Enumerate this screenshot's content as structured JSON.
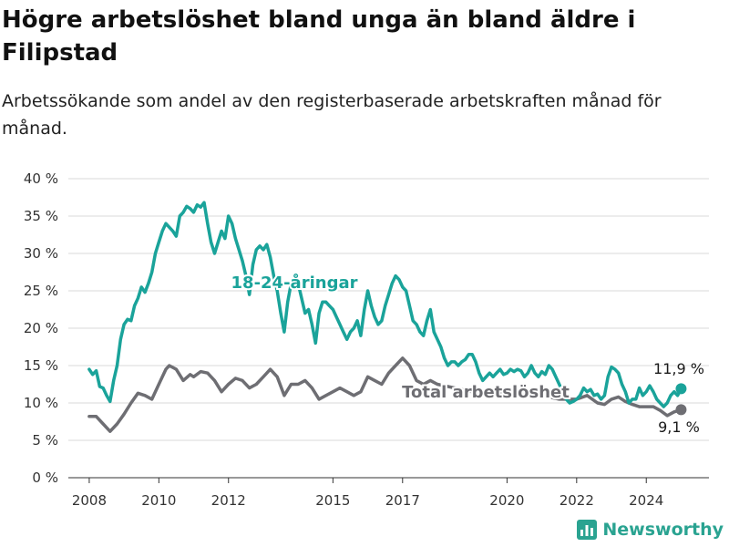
{
  "header": {
    "title": "Högre arbetslöshet bland unga än bland äldre i Filipstad",
    "subtitle": "Arbetssökande som andel av den registerbaserade arbetskraften månad för månad."
  },
  "brand": {
    "name": "Newsworthy",
    "icon": "bar-chart-logo-icon"
  },
  "colors": {
    "youth": "#1aa39a",
    "total": "#6e6e73",
    "grid": "#d9d9d9",
    "axis": "#333333"
  },
  "chart_data": {
    "type": "line",
    "title": "Högre arbetslöshet bland unga än bland äldre i Filipstad",
    "xlabel": "",
    "ylabel": "",
    "xlim": [
      2007.4,
      2025.8
    ],
    "ylim": [
      0,
      40
    ],
    "grid": true,
    "legend": "inline labels",
    "x_ticks": [
      2008,
      2010,
      2012,
      2015,
      2017,
      2020,
      2022,
      2024
    ],
    "x_tick_labels": [
      "2008",
      "2010",
      "2012",
      "2015",
      "2017",
      "2020",
      "2022",
      "2024"
    ],
    "y_ticks": [
      0,
      5,
      10,
      15,
      20,
      25,
      30,
      35,
      40
    ],
    "y_tick_labels": [
      "0 %",
      "5 %",
      "10 %",
      "15 %",
      "20 %",
      "25 %",
      "30 %",
      "35 %",
      "40 %"
    ],
    "series": [
      {
        "name": "18-24-åringar",
        "end_label": "11,9 %",
        "points": [
          [
            2008.0,
            14.5
          ],
          [
            2008.1,
            13.8
          ],
          [
            2008.2,
            14.3
          ],
          [
            2008.3,
            12.2
          ],
          [
            2008.4,
            12.0
          ],
          [
            2008.5,
            11.0
          ],
          [
            2008.6,
            10.2
          ],
          [
            2008.7,
            13.0
          ],
          [
            2008.8,
            15.0
          ],
          [
            2008.9,
            18.5
          ],
          [
            2009.0,
            20.5
          ],
          [
            2009.1,
            21.2
          ],
          [
            2009.2,
            21.0
          ],
          [
            2009.3,
            23.0
          ],
          [
            2009.4,
            24.0
          ],
          [
            2009.5,
            25.5
          ],
          [
            2009.6,
            24.8
          ],
          [
            2009.7,
            26.0
          ],
          [
            2009.8,
            27.5
          ],
          [
            2009.9,
            30.0
          ],
          [
            2010.0,
            31.5
          ],
          [
            2010.1,
            33.0
          ],
          [
            2010.2,
            34.0
          ],
          [
            2010.3,
            33.5
          ],
          [
            2010.4,
            33.0
          ],
          [
            2010.5,
            32.3
          ],
          [
            2010.6,
            35.0
          ],
          [
            2010.7,
            35.5
          ],
          [
            2010.8,
            36.3
          ],
          [
            2010.9,
            36.0
          ],
          [
            2011.0,
            35.5
          ],
          [
            2011.1,
            36.5
          ],
          [
            2011.2,
            36.2
          ],
          [
            2011.3,
            36.8
          ],
          [
            2011.4,
            34.0
          ],
          [
            2011.5,
            31.5
          ],
          [
            2011.6,
            30.0
          ],
          [
            2011.7,
            31.5
          ],
          [
            2011.8,
            33.0
          ],
          [
            2011.9,
            32.0
          ],
          [
            2012.0,
            35.0
          ],
          [
            2012.1,
            34.0
          ],
          [
            2012.2,
            32.0
          ],
          [
            2012.3,
            30.5
          ],
          [
            2012.4,
            29.0
          ],
          [
            2012.5,
            27.0
          ],
          [
            2012.6,
            24.5
          ],
          [
            2012.7,
            28.5
          ],
          [
            2012.8,
            30.5
          ],
          [
            2012.9,
            31.0
          ],
          [
            2013.0,
            30.5
          ],
          [
            2013.1,
            31.2
          ],
          [
            2013.2,
            29.5
          ],
          [
            2013.3,
            27.0
          ],
          [
            2013.4,
            25.0
          ],
          [
            2013.5,
            22.0
          ],
          [
            2013.6,
            19.5
          ],
          [
            2013.7,
            23.5
          ],
          [
            2013.8,
            26.0
          ],
          [
            2013.9,
            27.0
          ],
          [
            2014.0,
            26.0
          ],
          [
            2014.1,
            24.0
          ],
          [
            2014.2,
            22.0
          ],
          [
            2014.3,
            22.5
          ],
          [
            2014.4,
            20.5
          ],
          [
            2014.5,
            18.0
          ],
          [
            2014.6,
            22.0
          ],
          [
            2014.7,
            23.5
          ],
          [
            2014.8,
            23.5
          ],
          [
            2014.9,
            23.0
          ],
          [
            2015.0,
            22.5
          ],
          [
            2015.1,
            21.5
          ],
          [
            2015.2,
            20.5
          ],
          [
            2015.3,
            19.5
          ],
          [
            2015.4,
            18.5
          ],
          [
            2015.5,
            19.5
          ],
          [
            2015.6,
            20.0
          ],
          [
            2015.7,
            21.0
          ],
          [
            2015.8,
            19.0
          ],
          [
            2015.9,
            22.5
          ],
          [
            2016.0,
            25.0
          ],
          [
            2016.1,
            23.0
          ],
          [
            2016.2,
            21.5
          ],
          [
            2016.3,
            20.5
          ],
          [
            2016.4,
            21.0
          ],
          [
            2016.5,
            23.0
          ],
          [
            2016.6,
            24.5
          ],
          [
            2016.7,
            26.0
          ],
          [
            2016.8,
            27.0
          ],
          [
            2016.9,
            26.5
          ],
          [
            2017.0,
            25.5
          ],
          [
            2017.1,
            25.0
          ],
          [
            2017.2,
            23.0
          ],
          [
            2017.3,
            21.0
          ],
          [
            2017.4,
            20.5
          ],
          [
            2017.5,
            19.5
          ],
          [
            2017.6,
            19.0
          ],
          [
            2017.7,
            21.0
          ],
          [
            2017.8,
            22.5
          ],
          [
            2017.9,
            19.5
          ],
          [
            2018.0,
            18.5
          ],
          [
            2018.1,
            17.5
          ],
          [
            2018.2,
            16.0
          ],
          [
            2018.3,
            15.0
          ],
          [
            2018.4,
            15.5
          ],
          [
            2018.5,
            15.5
          ],
          [
            2018.6,
            15.0
          ],
          [
            2018.7,
            15.5
          ],
          [
            2018.8,
            15.8
          ],
          [
            2018.9,
            16.5
          ],
          [
            2019.0,
            16.5
          ],
          [
            2019.1,
            15.5
          ],
          [
            2019.2,
            14.0
          ],
          [
            2019.3,
            13.0
          ],
          [
            2019.4,
            13.5
          ],
          [
            2019.5,
            14.0
          ],
          [
            2019.6,
            13.5
          ],
          [
            2019.7,
            14.0
          ],
          [
            2019.8,
            14.5
          ],
          [
            2019.9,
            13.8
          ],
          [
            2020.0,
            14.0
          ],
          [
            2020.1,
            14.5
          ],
          [
            2020.2,
            14.2
          ],
          [
            2020.3,
            14.5
          ],
          [
            2020.4,
            14.3
          ],
          [
            2020.5,
            13.5
          ],
          [
            2020.6,
            14.0
          ],
          [
            2020.7,
            15.0
          ],
          [
            2020.8,
            14.0
          ],
          [
            2020.9,
            13.5
          ],
          [
            2021.0,
            14.2
          ],
          [
            2021.1,
            13.8
          ],
          [
            2021.2,
            15.0
          ],
          [
            2021.3,
            14.5
          ],
          [
            2021.4,
            13.5
          ],
          [
            2021.5,
            12.5
          ],
          [
            2021.6,
            11.5
          ],
          [
            2021.7,
            10.5
          ],
          [
            2021.8,
            10.0
          ],
          [
            2021.9,
            10.2
          ],
          [
            2022.0,
            10.5
          ],
          [
            2022.1,
            11.0
          ],
          [
            2022.2,
            12.0
          ],
          [
            2022.3,
            11.5
          ],
          [
            2022.4,
            11.8
          ],
          [
            2022.5,
            11.0
          ],
          [
            2022.6,
            11.2
          ],
          [
            2022.7,
            10.5
          ],
          [
            2022.8,
            11.0
          ],
          [
            2022.9,
            13.5
          ],
          [
            2023.0,
            14.8
          ],
          [
            2023.1,
            14.5
          ],
          [
            2023.2,
            14.0
          ],
          [
            2023.3,
            12.5
          ],
          [
            2023.4,
            11.5
          ],
          [
            2023.5,
            10.0
          ],
          [
            2023.6,
            10.5
          ],
          [
            2023.7,
            10.5
          ],
          [
            2023.8,
            12.0
          ],
          [
            2023.9,
            11.0
          ],
          [
            2024.0,
            11.5
          ],
          [
            2024.1,
            12.3
          ],
          [
            2024.2,
            11.5
          ],
          [
            2024.3,
            10.5
          ],
          [
            2024.4,
            10.0
          ],
          [
            2024.5,
            9.5
          ],
          [
            2024.6,
            10.0
          ],
          [
            2024.7,
            11.0
          ],
          [
            2024.8,
            11.5
          ],
          [
            2024.9,
            11.0
          ],
          [
            2025.0,
            11.9
          ]
        ]
      },
      {
        "name": "Total arbetslöshet",
        "end_label": "9,1 %",
        "points": [
          [
            2008.0,
            8.2
          ],
          [
            2008.2,
            8.2
          ],
          [
            2008.4,
            7.2
          ],
          [
            2008.6,
            6.2
          ],
          [
            2008.8,
            7.2
          ],
          [
            2009.0,
            8.5
          ],
          [
            2009.2,
            10.0
          ],
          [
            2009.4,
            11.3
          ],
          [
            2009.6,
            11.0
          ],
          [
            2009.8,
            10.5
          ],
          [
            2010.0,
            12.5
          ],
          [
            2010.2,
            14.5
          ],
          [
            2010.3,
            15.0
          ],
          [
            2010.5,
            14.5
          ],
          [
            2010.7,
            13.0
          ],
          [
            2010.9,
            13.8
          ],
          [
            2011.0,
            13.5
          ],
          [
            2011.2,
            14.2
          ],
          [
            2011.4,
            14.0
          ],
          [
            2011.6,
            13.0
          ],
          [
            2011.8,
            11.5
          ],
          [
            2012.0,
            12.5
          ],
          [
            2012.2,
            13.3
          ],
          [
            2012.4,
            13.0
          ],
          [
            2012.6,
            12.0
          ],
          [
            2012.8,
            12.5
          ],
          [
            2013.0,
            13.5
          ],
          [
            2013.2,
            14.5
          ],
          [
            2013.4,
            13.5
          ],
          [
            2013.6,
            11.0
          ],
          [
            2013.8,
            12.5
          ],
          [
            2014.0,
            12.5
          ],
          [
            2014.2,
            13.0
          ],
          [
            2014.4,
            12.0
          ],
          [
            2014.6,
            10.5
          ],
          [
            2014.8,
            11.0
          ],
          [
            2015.0,
            11.5
          ],
          [
            2015.2,
            12.0
          ],
          [
            2015.4,
            11.5
          ],
          [
            2015.6,
            11.0
          ],
          [
            2015.8,
            11.5
          ],
          [
            2016.0,
            13.5
          ],
          [
            2016.2,
            13.0
          ],
          [
            2016.4,
            12.5
          ],
          [
            2016.6,
            14.0
          ],
          [
            2016.8,
            15.0
          ],
          [
            2017.0,
            16.0
          ],
          [
            2017.2,
            15.0
          ],
          [
            2017.4,
            13.0
          ],
          [
            2017.6,
            12.5
          ],
          [
            2017.8,
            13.0
          ],
          [
            2018.0,
            12.5
          ],
          [
            2018.5,
            12.0
          ],
          [
            2019.0,
            11.5
          ],
          [
            2019.5,
            11.0
          ],
          [
            2020.0,
            11.5
          ],
          [
            2020.5,
            11.0
          ],
          [
            2021.0,
            11.0
          ],
          [
            2021.5,
            10.5
          ],
          [
            2022.0,
            10.5
          ],
          [
            2022.3,
            11.0
          ],
          [
            2022.6,
            10.0
          ],
          [
            2022.8,
            9.8
          ],
          [
            2023.0,
            10.5
          ],
          [
            2023.2,
            10.8
          ],
          [
            2023.4,
            10.2
          ],
          [
            2023.6,
            9.8
          ],
          [
            2023.8,
            9.5
          ],
          [
            2024.0,
            9.5
          ],
          [
            2024.2,
            9.5
          ],
          [
            2024.4,
            9.0
          ],
          [
            2024.6,
            8.3
          ],
          [
            2024.8,
            8.8
          ],
          [
            2025.0,
            9.1
          ]
        ]
      }
    ]
  }
}
